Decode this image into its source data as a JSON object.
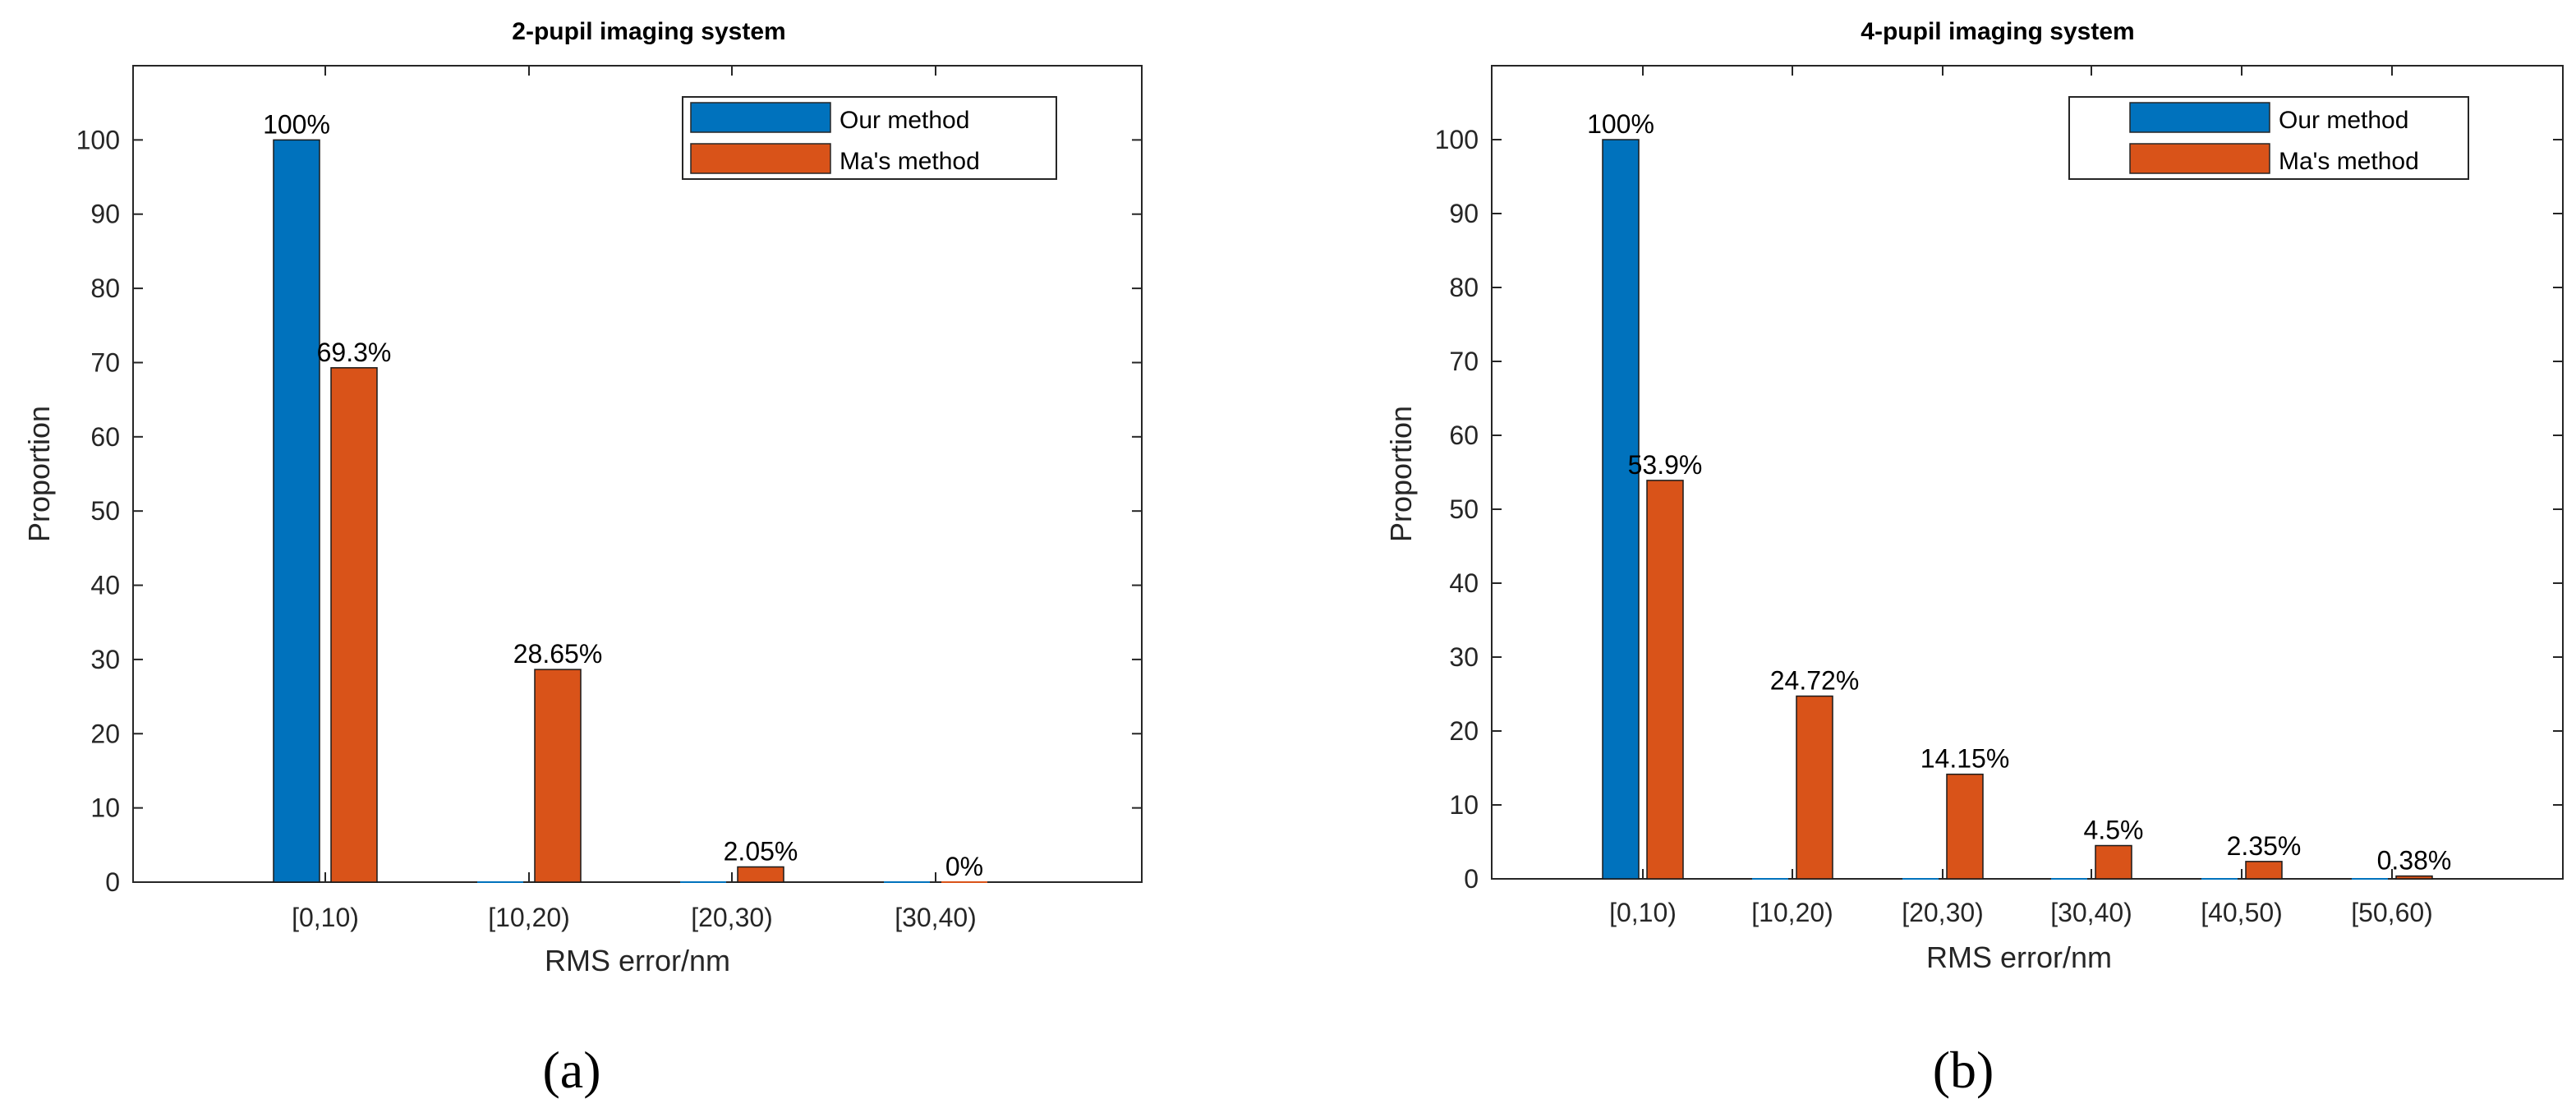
{
  "colors": {
    "our": "#0072BD",
    "ma": "#D95319",
    "axis": "#262626"
  },
  "chart_data": [
    {
      "type": "bar",
      "title": "2-pupil  imaging system",
      "xlabel": "RMS error/nm",
      "ylabel": "Proportion",
      "ylim": [
        0,
        110
      ],
      "yticks": [
        "0",
        "10",
        "20",
        "30",
        "40",
        "50",
        "60",
        "70",
        "80",
        "90",
        "100"
      ],
      "categories": [
        "[0,10)",
        "[10,20)",
        "[20,30)",
        "[30,40)"
      ],
      "series": [
        {
          "name": "Our method",
          "values": [
            100,
            0,
            0,
            0
          ]
        },
        {
          "name": "Ma's method",
          "values": [
            69.3,
            28.65,
            2.05,
            0
          ]
        }
      ],
      "data_labels": [
        {
          "category": 0,
          "series": 0,
          "text": "100%"
        },
        {
          "category": 0,
          "series": 1,
          "text": "69.3%"
        },
        {
          "category": 1,
          "series": 1,
          "text": "28.65%"
        },
        {
          "category": 2,
          "series": 1,
          "text": "2.05%"
        },
        {
          "category": 3,
          "series": 1,
          "text": "0%"
        }
      ],
      "legend": "top-right",
      "panel": "(a)"
    },
    {
      "type": "bar",
      "title": "4-pupil imaging system",
      "xlabel": "RMS error/nm",
      "ylabel": "Proportion",
      "ylim": [
        0,
        110
      ],
      "yticks": [
        "0",
        "10",
        "20",
        "30",
        "40",
        "50",
        "60",
        "70",
        "80",
        "90",
        "100"
      ],
      "categories": [
        "[0,10)",
        "[10,20)",
        "[20,30)",
        "[30,40)",
        "[40,50)",
        "[50,60)"
      ],
      "series": [
        {
          "name": "Our method",
          "values": [
            100,
            0,
            0,
            0,
            0,
            0
          ]
        },
        {
          "name": "Ma's method",
          "values": [
            53.9,
            24.72,
            14.15,
            4.5,
            2.35,
            0.38
          ]
        }
      ],
      "data_labels": [
        {
          "category": 0,
          "series": 0,
          "text": "100%"
        },
        {
          "category": 0,
          "series": 1,
          "text": "53.9%"
        },
        {
          "category": 1,
          "series": 1,
          "text": "24.72%"
        },
        {
          "category": 2,
          "series": 1,
          "text": "14.15%"
        },
        {
          "category": 3,
          "series": 1,
          "text": "4.5%"
        },
        {
          "category": 4,
          "series": 1,
          "text": "2.35%"
        },
        {
          "category": 5,
          "series": 1,
          "text": "0.38%"
        }
      ],
      "legend": "top-right",
      "panel": "(b)"
    }
  ]
}
